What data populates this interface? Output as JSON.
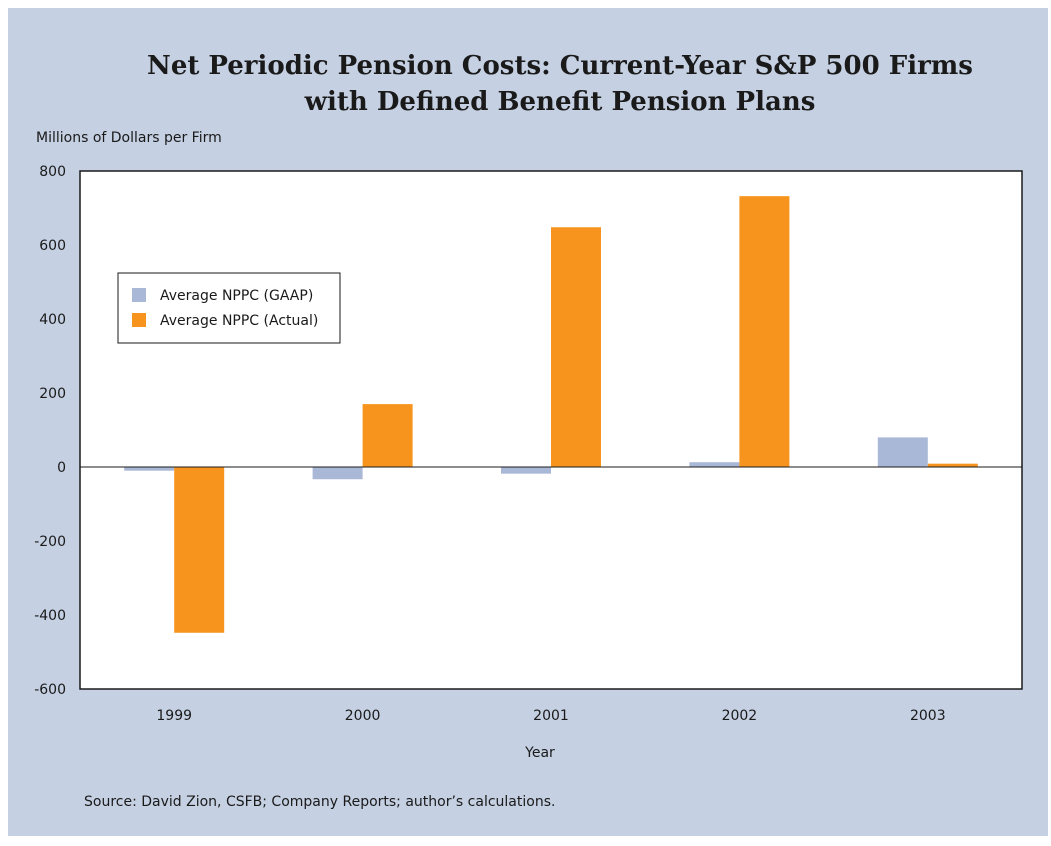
{
  "chart_data": {
    "type": "bar",
    "title": [
      "Net Periodic Pension Costs: Current-Year S&P 500 Firms",
      "with Defined Benefit Pension Plans"
    ],
    "ylabel": "Millions of Dollars per Firm",
    "xlabel": "Year",
    "categories": [
      "1999",
      "2000",
      "2001",
      "2002",
      "2003"
    ],
    "series": [
      {
        "name": "Average NPPC (GAAP)",
        "values": [
          -10,
          -33,
          -18,
          13,
          80
        ],
        "color": "#a9b8d6"
      },
      {
        "name": "Average NPPC (Actual)",
        "values": [
          -448,
          170,
          648,
          732,
          9
        ],
        "color": "#f7941d"
      }
    ],
    "ylim": [
      -600,
      800
    ],
    "yticks": [
      "800",
      "600",
      "400",
      "200",
      "0",
      "-200",
      "-400",
      "-600"
    ],
    "ytick_values": [
      800,
      600,
      400,
      200,
      0,
      -200,
      -400,
      -600
    ],
    "grid": false,
    "legend_position": "upper-left",
    "source": "Source: David Zion, CSFB; Company Reports; author’s calculations."
  },
  "colors": {
    "panel_background": "#c5d0e2",
    "plot_background": "#ffffff",
    "axis": "#1a1a1a"
  }
}
